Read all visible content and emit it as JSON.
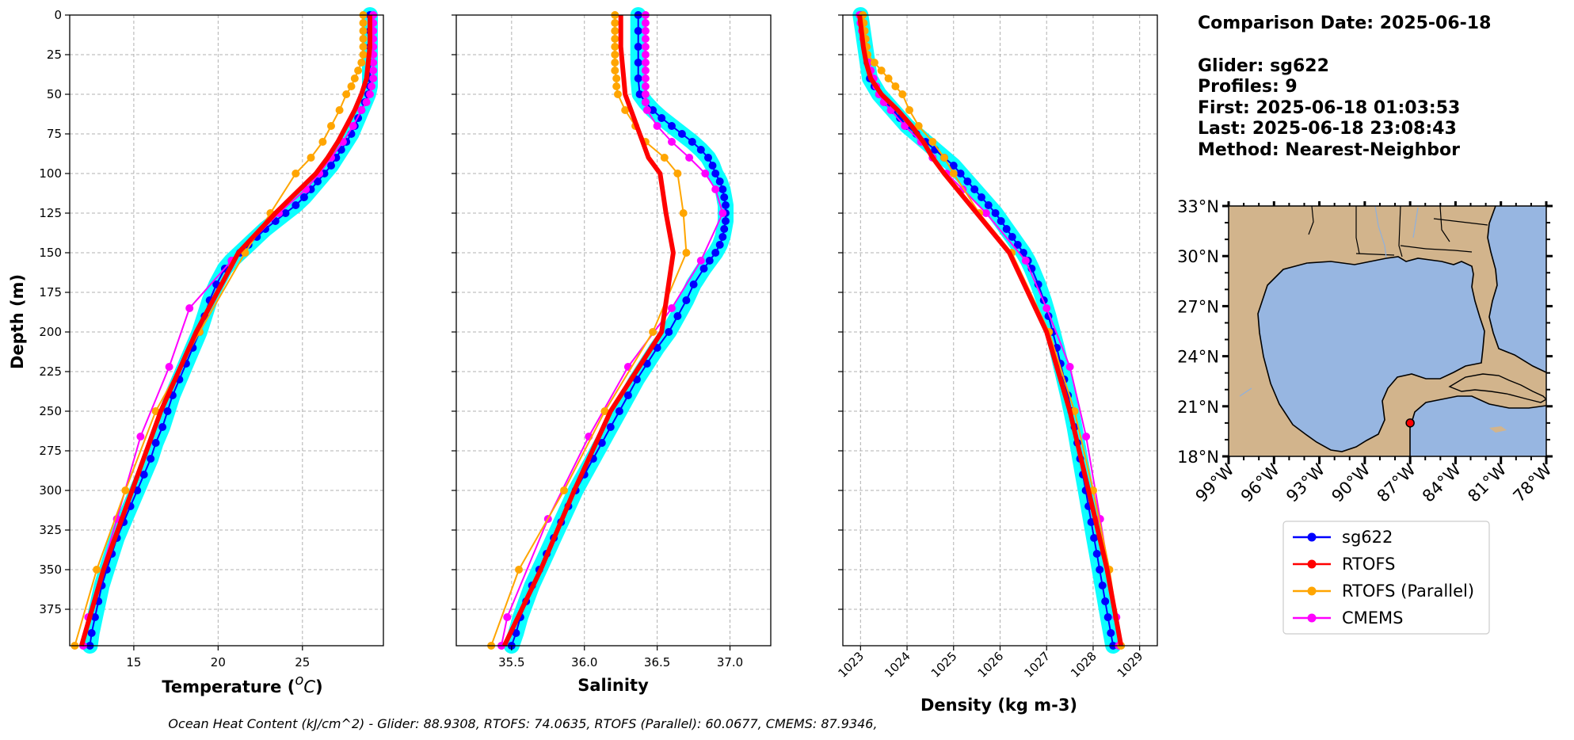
{
  "chart_data": [
    {
      "type": "line",
      "ylabel": "Depth (m)",
      "xlabel": "Temperature (°C)",
      "xlim": [
        11.2,
        29.8
      ],
      "ylim": [
        0,
        398
      ],
      "y_inverted": true,
      "grid": true,
      "xticks": [
        15,
        20,
        25
      ],
      "yticks": [
        0,
        25,
        50,
        75,
        100,
        125,
        150,
        175,
        200,
        225,
        250,
        275,
        300,
        325,
        350,
        375
      ],
      "series": [
        {
          "name": "sg622",
          "color": "#0000ff",
          "halo": "#00ffff",
          "depth": [
            0,
            10,
            20,
            30,
            40,
            45,
            50,
            55,
            60,
            65,
            70,
            75,
            80,
            85,
            90,
            95,
            100,
            105,
            110,
            115,
            120,
            125,
            130,
            135,
            140,
            145,
            150,
            155,
            160,
            170,
            180,
            190,
            200,
            210,
            220,
            230,
            240,
            250,
            260,
            270,
            280,
            290,
            300,
            310,
            320,
            330,
            340,
            350,
            360,
            370,
            380,
            390,
            398
          ],
          "values": [
            29.0,
            29.0,
            29.0,
            29.0,
            29.0,
            29.0,
            28.9,
            28.7,
            28.5,
            28.3,
            28.1,
            27.9,
            27.6,
            27.3,
            27.0,
            26.7,
            26.3,
            25.9,
            25.5,
            25.1,
            24.6,
            24.0,
            23.4,
            22.8,
            22.3,
            21.8,
            21.3,
            20.8,
            20.4,
            19.9,
            19.5,
            19.2,
            18.9,
            18.5,
            18.1,
            17.7,
            17.3,
            17.0,
            16.7,
            16.3,
            16.0,
            15.6,
            15.2,
            14.8,
            14.4,
            14.0,
            13.7,
            13.4,
            13.1,
            12.9,
            12.7,
            12.5,
            12.4
          ]
        },
        {
          "name": "RTOFS",
          "color": "#ff0000",
          "depth": [
            0,
            10,
            20,
            30,
            40,
            50,
            60,
            70,
            80,
            90,
            100,
            125,
            150,
            200,
            250,
            300,
            350,
            398
          ],
          "values": [
            29.0,
            29.0,
            29.0,
            28.9,
            28.8,
            28.5,
            28.1,
            27.6,
            27.1,
            26.5,
            25.8,
            23.4,
            21.2,
            18.7,
            16.6,
            14.9,
            13.2,
            11.9
          ]
        },
        {
          "name": "RTOFS (Parallel)",
          "color": "#ffa500",
          "depth": [
            0,
            5,
            10,
            15,
            20,
            25,
            30,
            35,
            40,
            45,
            50,
            60,
            70,
            80,
            90,
            100,
            125,
            150,
            200,
            250,
            300,
            350,
            398
          ],
          "values": [
            28.6,
            28.6,
            28.6,
            28.6,
            28.6,
            28.6,
            28.5,
            28.3,
            28.1,
            27.9,
            27.6,
            27.2,
            26.7,
            26.2,
            25.5,
            24.6,
            23.1,
            21.6,
            18.9,
            16.3,
            14.5,
            12.8,
            11.5
          ]
        },
        {
          "name": "CMEMS",
          "color": "#ff00ff",
          "depth": [
            0,
            5,
            10,
            15,
            20,
            25,
            30,
            35,
            40,
            45,
            50,
            55,
            60,
            70,
            80,
            90,
            100,
            110,
            125,
            155,
            185,
            222,
            266,
            318,
            380,
            398
          ],
          "values": [
            29.2,
            29.2,
            29.2,
            29.2,
            29.2,
            29.2,
            29.2,
            29.2,
            29.2,
            29.1,
            29.0,
            28.8,
            28.5,
            28.0,
            27.4,
            26.7,
            26.0,
            25.2,
            23.6,
            20.8,
            18.3,
            17.1,
            15.4,
            14.0,
            12.3,
            12.0
          ]
        }
      ]
    },
    {
      "type": "line",
      "xlabel": "Salinity",
      "xlim": [
        35.12,
        37.28
      ],
      "ylim": [
        0,
        398
      ],
      "y_inverted": true,
      "grid": true,
      "xticks": [
        35.5,
        36.0,
        36.5,
        37.0
      ],
      "series": [
        {
          "name": "sg622",
          "color": "#0000ff",
          "halo": "#00ffff",
          "depth": [
            0,
            10,
            20,
            30,
            40,
            50,
            55,
            60,
            65,
            70,
            75,
            80,
            85,
            90,
            95,
            100,
            105,
            110,
            115,
            120,
            125,
            130,
            135,
            140,
            145,
            150,
            155,
            160,
            170,
            180,
            190,
            200,
            210,
            220,
            230,
            240,
            250,
            260,
            270,
            280,
            290,
            300,
            310,
            320,
            330,
            340,
            350,
            360,
            370,
            380,
            390,
            398
          ],
          "values": [
            36.37,
            36.37,
            36.37,
            36.37,
            36.37,
            36.38,
            36.42,
            36.47,
            36.53,
            36.6,
            36.67,
            36.74,
            36.8,
            36.85,
            36.88,
            36.9,
            36.93,
            36.95,
            36.96,
            36.97,
            36.97,
            36.97,
            36.96,
            36.95,
            36.93,
            36.9,
            36.86,
            36.82,
            36.75,
            36.7,
            36.64,
            36.58,
            36.5,
            36.43,
            36.36,
            36.3,
            36.24,
            36.18,
            36.12,
            36.06,
            36.0,
            35.94,
            35.89,
            35.84,
            35.79,
            35.74,
            35.69,
            35.64,
            35.6,
            35.56,
            35.53,
            35.5
          ]
        },
        {
          "name": "RTOFS",
          "color": "#ff0000",
          "depth": [
            0,
            10,
            20,
            30,
            40,
            50,
            60,
            70,
            80,
            90,
            100,
            125,
            150,
            200,
            250,
            300,
            350,
            398
          ],
          "values": [
            36.25,
            36.25,
            36.25,
            36.26,
            36.27,
            36.28,
            36.32,
            36.36,
            36.4,
            36.44,
            36.52,
            36.56,
            36.61,
            36.53,
            36.18,
            35.93,
            35.7,
            35.45
          ]
        },
        {
          "name": "RTOFS (Parallel)",
          "color": "#ffa500",
          "depth": [
            0,
            5,
            10,
            15,
            20,
            25,
            30,
            35,
            40,
            45,
            50,
            60,
            70,
            80,
            90,
            100,
            125,
            150,
            200,
            250,
            300,
            350,
            398
          ],
          "values": [
            36.21,
            36.21,
            36.21,
            36.21,
            36.21,
            36.21,
            36.21,
            36.21,
            36.22,
            36.22,
            36.23,
            36.28,
            36.35,
            36.42,
            36.55,
            36.64,
            36.68,
            36.7,
            36.47,
            36.14,
            35.86,
            35.55,
            35.36
          ]
        },
        {
          "name": "CMEMS",
          "color": "#ff00ff",
          "depth": [
            0,
            5,
            10,
            15,
            20,
            25,
            30,
            35,
            40,
            45,
            50,
            55,
            60,
            70,
            80,
            90,
            100,
            110,
            125,
            155,
            185,
            222,
            266,
            318,
            380,
            398
          ],
          "values": [
            36.42,
            36.42,
            36.42,
            36.42,
            36.42,
            36.42,
            36.42,
            36.42,
            36.42,
            36.42,
            36.42,
            36.42,
            36.43,
            36.5,
            36.6,
            36.72,
            36.83,
            36.9,
            36.95,
            36.8,
            36.6,
            36.3,
            36.03,
            35.75,
            35.47,
            35.43
          ]
        }
      ]
    },
    {
      "type": "line",
      "xlabel": "Density (kg m-3)",
      "xlim": [
        1022.62,
        1029.38
      ],
      "ylim": [
        0,
        398
      ],
      "y_inverted": true,
      "grid": true,
      "xticks": [
        1023,
        1024,
        1025,
        1026,
        1027,
        1028,
        1029
      ],
      "series": [
        {
          "name": "sg622",
          "color": "#0000ff",
          "halo": "#00ffff",
          "depth": [
            0,
            10,
            20,
            30,
            40,
            45,
            50,
            55,
            60,
            65,
            70,
            75,
            80,
            85,
            90,
            95,
            100,
            105,
            110,
            115,
            120,
            125,
            130,
            135,
            140,
            145,
            150,
            155,
            160,
            170,
            180,
            190,
            200,
            210,
            220,
            230,
            240,
            250,
            260,
            270,
            280,
            290,
            300,
            310,
            320,
            330,
            340,
            350,
            360,
            370,
            380,
            390,
            398
          ],
          "values": [
            1023.0,
            1023.05,
            1023.1,
            1023.15,
            1023.2,
            1023.3,
            1023.4,
            1023.55,
            1023.7,
            1023.85,
            1024.0,
            1024.2,
            1024.4,
            1024.6,
            1024.8,
            1025.0,
            1025.15,
            1025.3,
            1025.45,
            1025.6,
            1025.75,
            1025.9,
            1026.02,
            1026.14,
            1026.26,
            1026.38,
            1026.5,
            1026.6,
            1026.68,
            1026.82,
            1026.94,
            1027.04,
            1027.13,
            1027.22,
            1027.3,
            1027.38,
            1027.46,
            1027.53,
            1027.6,
            1027.66,
            1027.72,
            1027.78,
            1027.84,
            1027.9,
            1027.96,
            1028.02,
            1028.08,
            1028.14,
            1028.2,
            1028.26,
            1028.32,
            1028.38,
            1028.43
          ]
        },
        {
          "name": "RTOFS",
          "color": "#ff0000",
          "depth": [
            0,
            10,
            20,
            30,
            40,
            50,
            60,
            70,
            80,
            90,
            100,
            125,
            150,
            200,
            250,
            300,
            350,
            398
          ],
          "values": [
            1022.98,
            1023.02,
            1023.06,
            1023.12,
            1023.22,
            1023.45,
            1023.8,
            1024.1,
            1024.35,
            1024.55,
            1024.8,
            1025.5,
            1026.2,
            1027.0,
            1027.5,
            1027.9,
            1028.3,
            1028.6
          ]
        },
        {
          "name": "RTOFS (Parallel)",
          "color": "#ffa500",
          "depth": [
            0,
            5,
            10,
            15,
            20,
            25,
            30,
            35,
            40,
            45,
            50,
            60,
            70,
            80,
            90,
            100,
            125,
            150,
            200,
            250,
            300,
            350,
            398
          ],
          "values": [
            1023.05,
            1023.07,
            1023.09,
            1023.11,
            1023.13,
            1023.15,
            1023.3,
            1023.45,
            1023.6,
            1023.75,
            1023.9,
            1024.05,
            1024.25,
            1024.55,
            1024.8,
            1025.0,
            1025.55,
            1026.25,
            1027.05,
            1027.6,
            1028.0,
            1028.35,
            1028.6
          ]
        },
        {
          "name": "CMEMS",
          "color": "#ff00ff",
          "depth": [
            0,
            5,
            10,
            15,
            20,
            25,
            30,
            35,
            40,
            45,
            50,
            55,
            60,
            70,
            80,
            90,
            100,
            110,
            125,
            155,
            185,
            222,
            266,
            318,
            380,
            398
          ],
          "values": [
            1022.98,
            1023.0,
            1023.03,
            1023.06,
            1023.1,
            1023.13,
            1023.17,
            1023.22,
            1023.28,
            1023.34,
            1023.4,
            1023.5,
            1023.65,
            1023.95,
            1024.3,
            1024.55,
            1024.85,
            1025.2,
            1025.7,
            1026.55,
            1027.0,
            1027.5,
            1027.85,
            1028.15,
            1028.5,
            1028.55
          ]
        }
      ]
    }
  ],
  "info": {
    "comparison_date": "Comparison Date: 2025-06-18",
    "glider": "Glider: sg622",
    "profiles": "Profiles: 9",
    "first": "First: 2025-06-18 01:03:53",
    "last": "Last: 2025-06-18 23:08:43",
    "method": "Method: Nearest-Neighbor"
  },
  "map": {
    "lon_ticks": [
      "99°W",
      "96°W",
      "93°W",
      "90°W",
      "87°W",
      "84°W",
      "81°W",
      "78°W"
    ],
    "lat_ticks": [
      "33°N",
      "30°N",
      "27°N",
      "24°N",
      "21°N",
      "18°N"
    ],
    "lon_range": [
      -99,
      -78
    ],
    "lat_range": [
      18,
      33
    ],
    "glider_position": {
      "lon": -87.0,
      "lat": 20.0
    },
    "land_color": "#d2b48c",
    "water_color": "#97b6e1"
  },
  "legend": [
    {
      "label": "sg622",
      "color": "#0000ff"
    },
    {
      "label": "RTOFS",
      "color": "#ff0000"
    },
    {
      "label": "RTOFS (Parallel)",
      "color": "#ffa500"
    },
    {
      "label": "CMEMS",
      "color": "#ff00ff"
    }
  ],
  "footer": "Ocean Heat Content (kJ/cm^2) - Glider: 88.9308,  RTOFS: 74.0635,  RTOFS (Parallel): 60.0677,  CMEMS: 87.9346,"
}
